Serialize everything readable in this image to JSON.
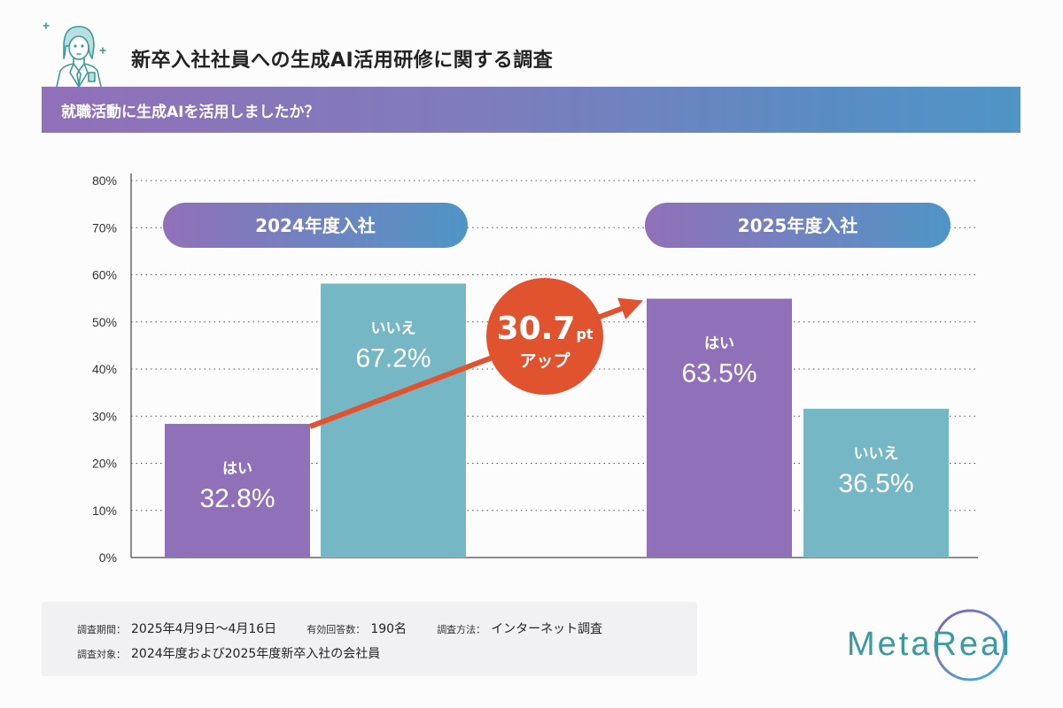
{
  "header": {
    "title": "新卒入社社員への生成AI活用研修に関する調査",
    "question": "就職活動に生成AIを活用しましたか？",
    "illustration_icon": "businessperson-icon"
  },
  "colors": {
    "yes": "#9070b8",
    "no": "#76b7c5",
    "accent": "#e0532e",
    "pill_start": "#9170b9",
    "pill_end": "#4f95c6"
  },
  "chart_data": {
    "type": "bar",
    "title": "就職活動に生成AIを活用しましたか？",
    "xlabel": "",
    "ylabel": "",
    "ylim": [
      0,
      80
    ],
    "yticks": [
      "0%",
      "10%",
      "20%",
      "30%",
      "40%",
      "50%",
      "60%",
      "70%",
      "80%"
    ],
    "grid": true,
    "groups": [
      {
        "label": "2024年度入社",
        "bars": [
          {
            "category": "はい",
            "value": 32.8,
            "label": "32.8%"
          },
          {
            "category": "いいえ",
            "value": 67.2,
            "label": "67.2%"
          }
        ]
      },
      {
        "label": "2025年度入社",
        "bars": [
          {
            "category": "はい",
            "value": 63.5,
            "label": "63.5%"
          },
          {
            "category": "いいえ",
            "value": 36.5,
            "label": "36.5%"
          }
        ]
      }
    ],
    "annotation": {
      "value": "30.7",
      "unit": "pt",
      "text": "アップ"
    }
  },
  "footer": {
    "period_label": "調査期間：",
    "period_value": "2025年4月9日〜4月16日",
    "responses_label": "有効回答数：",
    "responses_value": "190名",
    "method_label": "調査方法：",
    "method_value": "インターネット調査",
    "target_label": "調査対象：",
    "target_value": "2024年度および2025年度新卒入社の会社員"
  },
  "logo": {
    "text": "MetaReal"
  }
}
